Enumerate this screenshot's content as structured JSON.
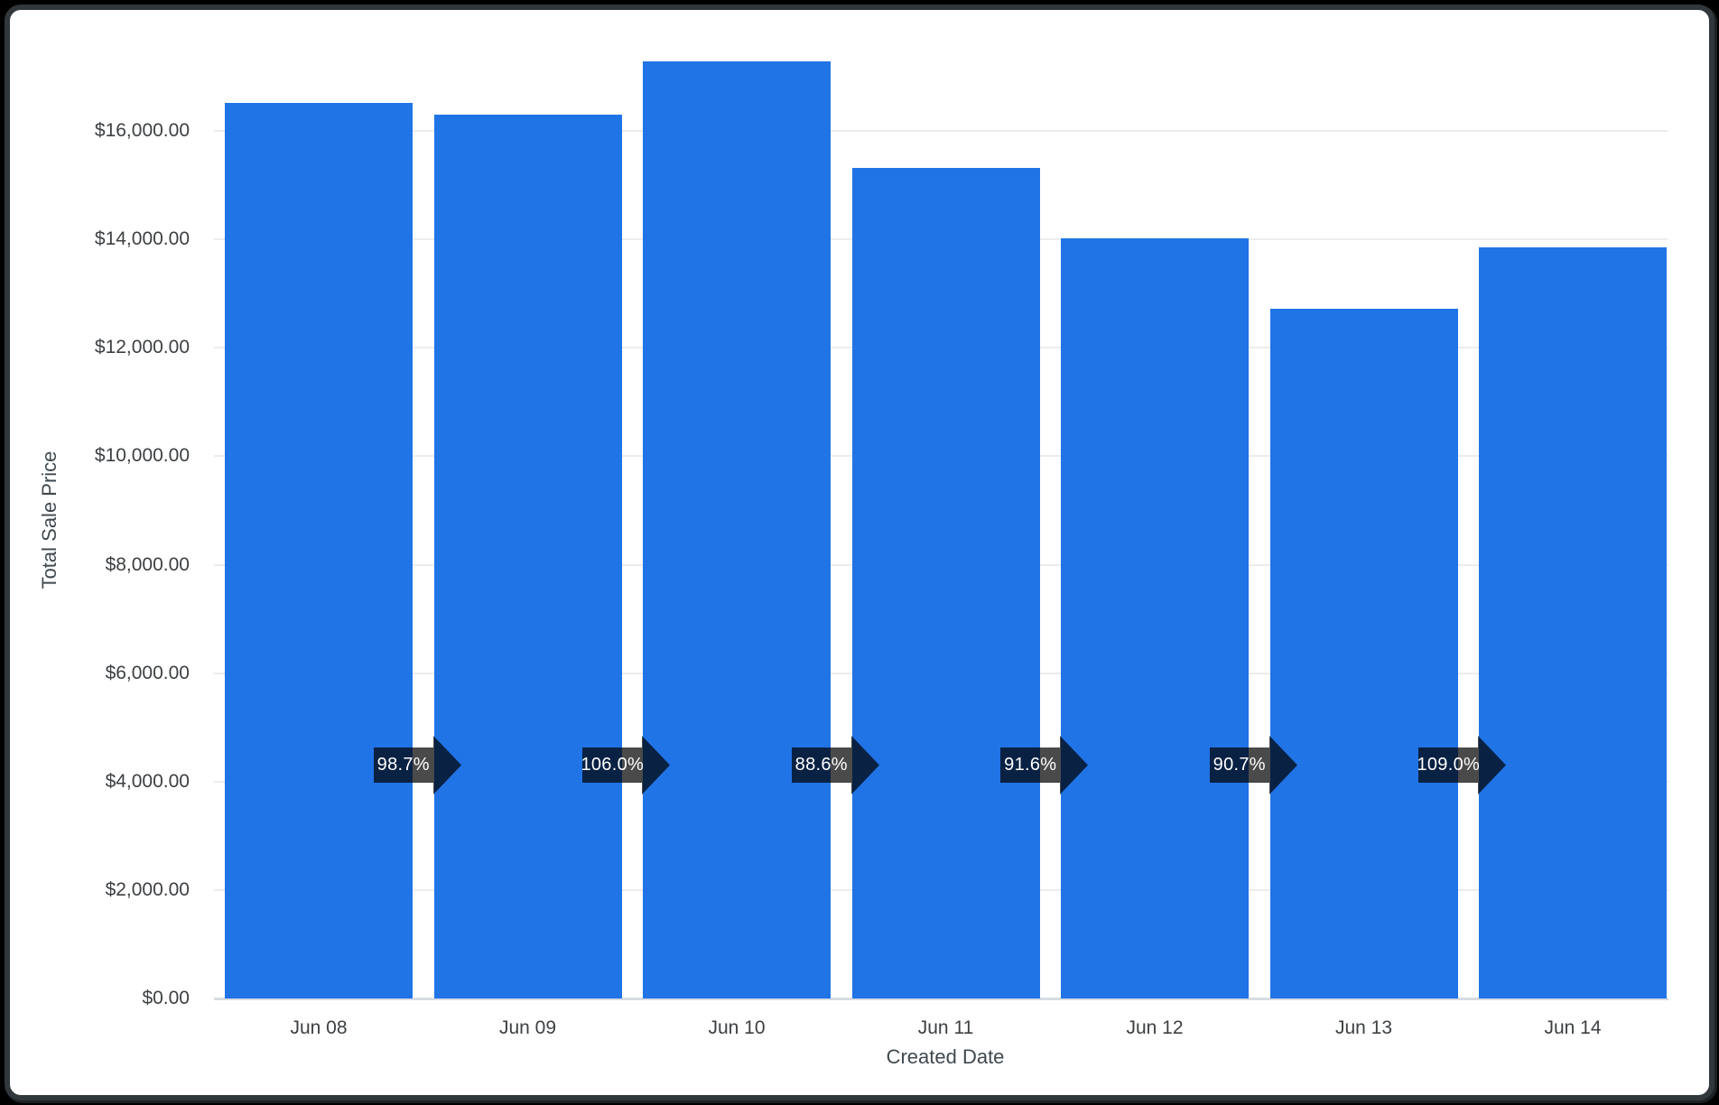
{
  "window": {
    "background_color": "#000000",
    "card_background": "#ffffff",
    "card_border_color": "#31383c"
  },
  "chart_data": {
    "type": "bar",
    "title": "",
    "xlabel": "Created Date",
    "ylabel": "Total Sale Price",
    "categories": [
      "Jun 08",
      "Jun 09",
      "Jun 10",
      "Jun 11",
      "Jun 12",
      "Jun 13",
      "Jun 14"
    ],
    "series": [
      {
        "name": "Total Sale Price",
        "values": [
          16510,
          16300,
          17280,
          15310,
          14020,
          12720,
          13860
        ]
      }
    ],
    "value_unit": "USD",
    "growth_arrows": {
      "labels": [
        "98.7%",
        "106.0%",
        "88.6%",
        "91.6%",
        "90.7%",
        "109.0%"
      ],
      "meaning": "ratio of each bar to the previous bar, arrow points right between adjacent bars"
    },
    "yticks": {
      "values": [
        0,
        2000,
        4000,
        6000,
        8000,
        10000,
        12000,
        14000,
        16000
      ],
      "labels": [
        "$0.00",
        "$2,000.00",
        "$4,000.00",
        "$6,000.00",
        "$8,000.00",
        "$10,000.00",
        "$12,000.00",
        "$14,000.00",
        "$16,000.00"
      ]
    },
    "ylim": [
      0,
      17400
    ],
    "grid": true,
    "legend": false,
    "colors": {
      "bar": "#2074e6",
      "arrow_fill": "rgba(0,0,0,0.71)",
      "arrow_text": "#ffffff",
      "gridline": "#ececec",
      "axis_line": "#d7dbe4",
      "tick_text": "#3c4043",
      "axis_title_text": "#40494f"
    }
  }
}
